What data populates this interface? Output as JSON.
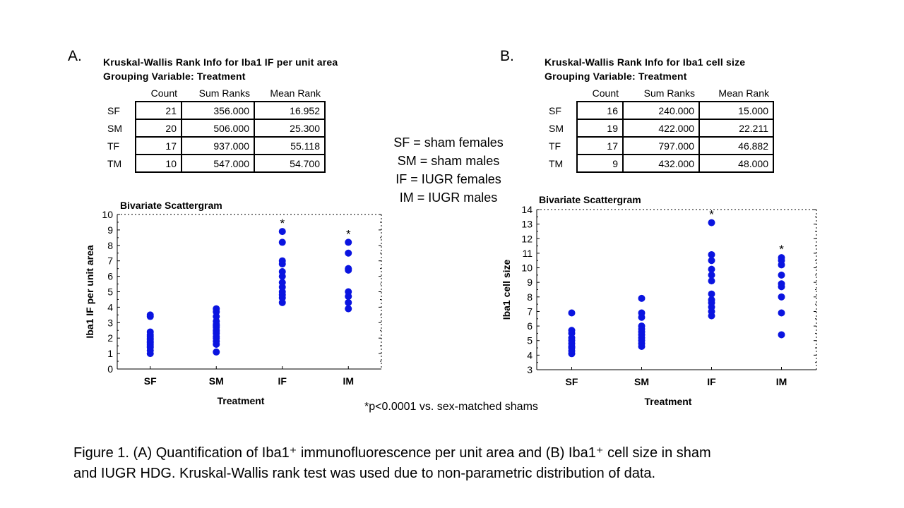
{
  "panel_a": {
    "letter": "A.",
    "table_title_1": "Kruskal-Wallis Rank Info for Iba1 IF per unit area",
    "table_title_2": "Grouping Variable: Treatment",
    "columns": [
      "Count",
      "Sum Ranks",
      "Mean Rank"
    ],
    "rows": [
      {
        "label": "SF",
        "count": "21",
        "sum_ranks": "356.000",
        "mean_rank": "16.952"
      },
      {
        "label": "SM",
        "count": "20",
        "sum_ranks": "506.000",
        "mean_rank": "25.300"
      },
      {
        "label": "TF",
        "count": "17",
        "sum_ranks": "937.000",
        "mean_rank": "55.118"
      },
      {
        "label": "TM",
        "count": "10",
        "sum_ranks": "547.000",
        "mean_rank": "54.700"
      }
    ]
  },
  "panel_b": {
    "letter": "B.",
    "table_title_1": "Kruskal-Wallis Rank Info for Iba1 cell size",
    "table_title_2": "Grouping Variable: Treatment",
    "columns": [
      "Count",
      "Sum Ranks",
      "Mean Rank"
    ],
    "rows": [
      {
        "label": "SF",
        "count": "16",
        "sum_ranks": "240.000",
        "mean_rank": "15.000"
      },
      {
        "label": "SM",
        "count": "19",
        "sum_ranks": "422.000",
        "mean_rank": "22.211"
      },
      {
        "label": "TF",
        "count": "17",
        "sum_ranks": "797.000",
        "mean_rank": "46.882"
      },
      {
        "label": "TM",
        "count": "9",
        "sum_ranks": "432.000",
        "mean_rank": "48.000"
      }
    ]
  },
  "legend": [
    "SF = sham females",
    "SM = sham males",
    "IF = IUGR females",
    "IM = IUGR males"
  ],
  "pvalue_note": "*p<0.0001 vs. sex-matched shams",
  "caption_line1": "Figure 1. (A) Quantification of Iba1⁺ immunofluorescence per unit area and (B) Iba1⁺ cell size in sham",
  "caption_line2": "and IUGR HDG. Kruskal-Wallis rank test was used due to non-parametric distribution of data.",
  "colors": {
    "points": "#0a14e0"
  },
  "chart_data": [
    {
      "type": "scatter",
      "title": "Bivariate Scattergram",
      "xlabel": "Treatment",
      "ylabel": "Iba1 IF per unit area",
      "categories": [
        "SF",
        "SM",
        "IF",
        "IM"
      ],
      "ylim": [
        0,
        10
      ],
      "yticks": [
        0,
        1,
        2,
        3,
        4,
        5,
        6,
        7,
        8,
        9,
        10
      ],
      "significance": [
        "",
        "",
        "*",
        "*"
      ],
      "points": [
        [
          1.0,
          1.2,
          1.4,
          1.5,
          1.6,
          1.7,
          1.8,
          1.9,
          2.0,
          2.1,
          2.2,
          2.4,
          3.4,
          3.5
        ],
        [
          1.1,
          1.6,
          1.8,
          2.0,
          2.1,
          2.3,
          2.4,
          2.5,
          2.7,
          2.8,
          2.9,
          3.1,
          3.4,
          3.7,
          3.9
        ],
        [
          4.3,
          4.6,
          4.8,
          5.0,
          5.3,
          5.6,
          6.0,
          6.3,
          6.8,
          7.0,
          8.2,
          8.9
        ],
        [
          3.9,
          4.3,
          4.7,
          5.0,
          6.4,
          6.5,
          7.5,
          8.2
        ]
      ]
    },
    {
      "type": "scatter",
      "title": "Bivariate Scattergram",
      "xlabel": "Treatment",
      "ylabel": "Iba1 cell size",
      "categories": [
        "SF",
        "SM",
        "IF",
        "IM"
      ],
      "ylim": [
        3,
        14
      ],
      "yticks": [
        3,
        4,
        5,
        6,
        7,
        8,
        9,
        10,
        11,
        12,
        13,
        14
      ],
      "significance": [
        "",
        "",
        "*",
        "*"
      ],
      "points": [
        [
          4.1,
          4.3,
          4.5,
          4.6,
          4.8,
          5.0,
          5.2,
          5.5,
          5.7,
          6.9
        ],
        [
          4.6,
          4.8,
          5.0,
          5.2,
          5.4,
          5.6,
          5.8,
          6.0,
          6.6,
          6.9,
          7.9
        ],
        [
          6.7,
          7.0,
          7.3,
          7.6,
          7.8,
          8.2,
          9.1,
          9.5,
          9.9,
          10.5,
          10.9,
          13.1
        ],
        [
          5.4,
          6.9,
          8.0,
          8.7,
          8.9,
          9.5,
          10.2,
          10.5,
          10.7
        ]
      ]
    }
  ]
}
